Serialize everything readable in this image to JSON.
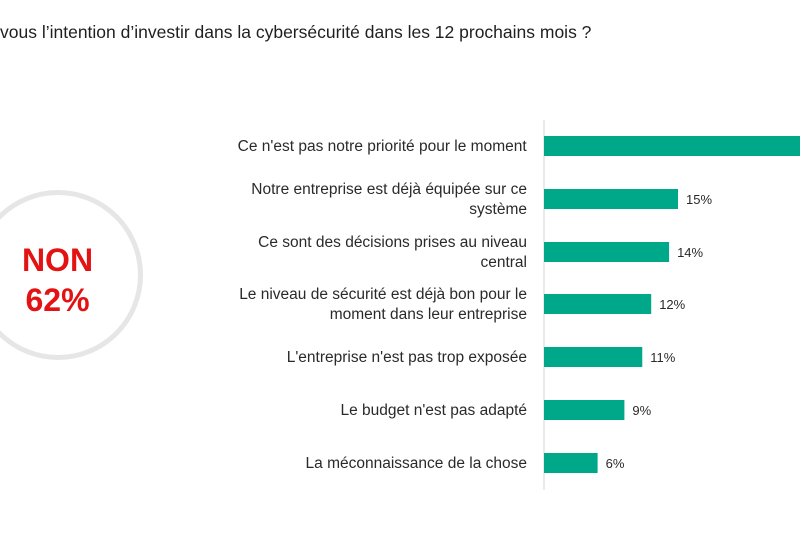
{
  "title": "vous l’intention d’investir dans la cybersécurité dans les 12 prochains mois ?",
  "highlight": {
    "line1": "NON",
    "line2": "62%",
    "color": "#e31313"
  },
  "colors": {
    "bar": "#00a88a",
    "axis": "#d4d4d4"
  },
  "chart_data": {
    "type": "bar",
    "orientation": "horizontal",
    "categories": [
      [
        "Ce n'est pas notre priorité pour le moment"
      ],
      [
        "Notre entreprise est déjà équipée sur ce",
        "système"
      ],
      [
        "Ce sont des décisions prises au niveau",
        "central"
      ],
      [
        "Le niveau de sécurité est déjà bon pour le",
        "moment dans leur entreprise"
      ],
      [
        "L'entreprise n'est pas trop exposée"
      ],
      [
        "Le budget n'est pas adapté"
      ],
      [
        "La méconnaissance de la chose"
      ]
    ],
    "values": [
      null,
      15,
      14,
      12,
      11,
      9,
      6
    ],
    "value_labels": [
      "",
      "15%",
      "14%",
      "12%",
      "11%",
      "9%",
      "6%"
    ],
    "unit": "%",
    "xlim": [
      0,
      30
    ]
  }
}
